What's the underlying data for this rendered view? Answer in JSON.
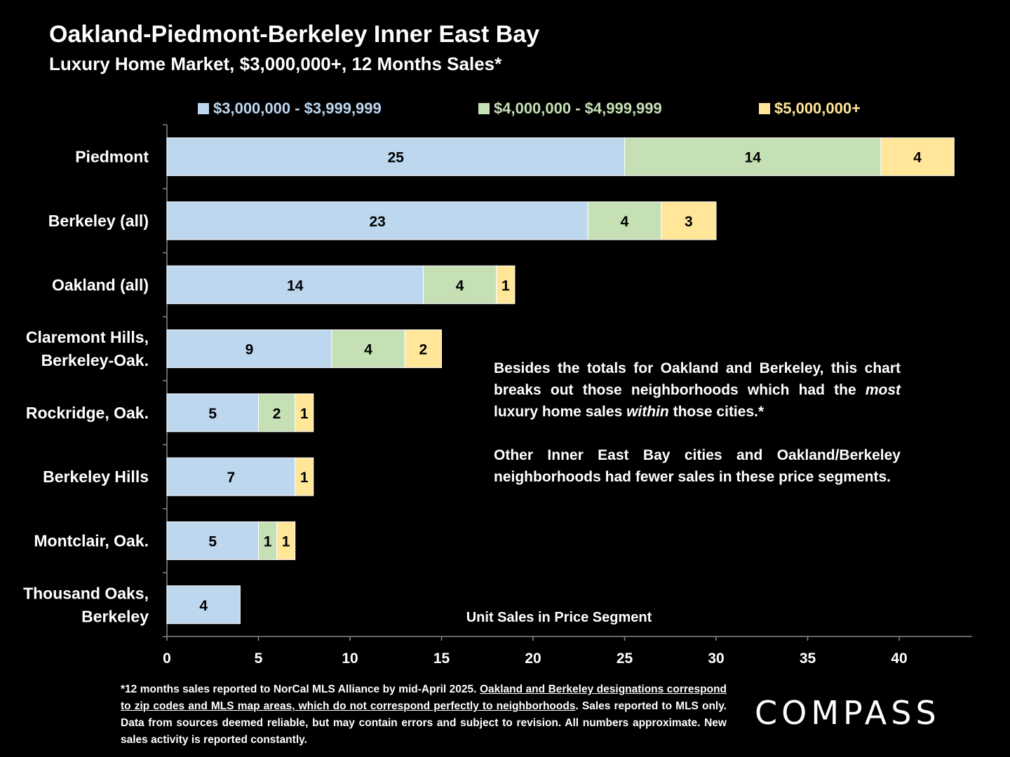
{
  "header": {
    "title": "Oakland-Piedmont-Berkeley Inner East Bay",
    "subtitle": "Luxury Home Market, $3,000,000+, 12 Months Sales*"
  },
  "colors": {
    "tier1": "#bdd7ee",
    "tier2": "#c5e0b4",
    "tier3": "#ffe699",
    "tier1_text": "#bdd7ee",
    "tier2_text": "#c5e0b4",
    "tier3_text": "#ffe699"
  },
  "chart_data": {
    "type": "bar",
    "orientation": "horizontal",
    "stacked": true,
    "categories": [
      "Piedmont",
      "Berkeley (all)",
      "Oakland (all)",
      "Claremont Hills,\nBerkeley-Oak.",
      "Rockridge, Oak.",
      "Berkeley Hills",
      "Montclair, Oak.",
      "Thousand Oaks,\nBerkeley"
    ],
    "series": [
      {
        "name": "$3,000,000 - $3,999,999",
        "values": [
          25,
          23,
          14,
          9,
          5,
          7,
          5,
          4
        ]
      },
      {
        "name": "$4,000,000 - $4,999,999",
        "values": [
          14,
          4,
          4,
          4,
          2,
          0,
          1,
          0
        ]
      },
      {
        "name": "$5,000,000+",
        "values": [
          4,
          3,
          1,
          2,
          1,
          1,
          1,
          0
        ]
      }
    ],
    "xlabel": "Unit Sales in Price Segment",
    "xlim": [
      0,
      44
    ],
    "xticks": [
      0,
      5,
      10,
      15,
      20,
      25,
      30,
      35,
      40
    ],
    "legend_position": "top",
    "grid": false
  },
  "note": {
    "p1_a": "Besides the totals for Oakland and Berkeley, this chart breaks out those neighborhoods which had the ",
    "p1_em1": "most",
    "p1_b": " luxury home sales ",
    "p1_em2": "within",
    "p1_c": " those cities.*",
    "p2": "Other Inner East Bay cities and Oakland/Berkeley neighborhoods had fewer sales in these price segments."
  },
  "footnote": {
    "part1": "*12 months sales reported to NorCal MLS Alliance by mid-April 2025. ",
    "underlined": "Oakland and Berkeley designations correspond to zip codes and MLS map areas, which do not correspond perfectly to neighborhoods",
    "part2": ". Sales reported to MLS only. Data from  sources deemed reliable, but may contain errors and subject to revision. All numbers approximate. New sales activity is reported constantly."
  },
  "brand": {
    "logo_text": "COMPASS"
  }
}
